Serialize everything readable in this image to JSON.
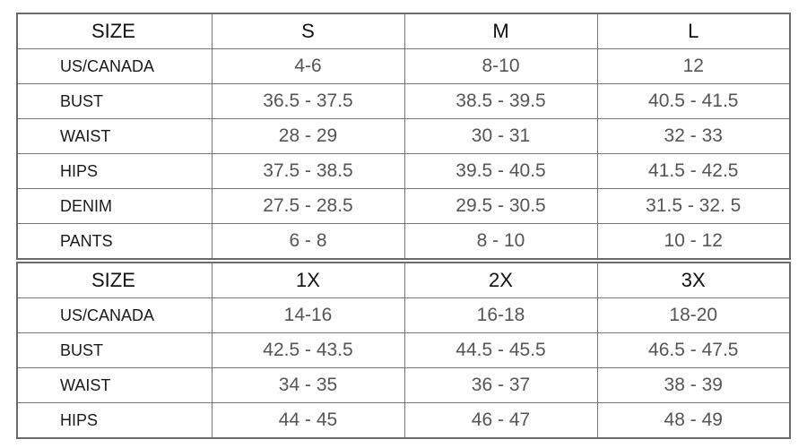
{
  "tables": [
    {
      "header": [
        "SIZE",
        "S",
        "M",
        "L"
      ],
      "rows": [
        {
          "label": "US/CANADA",
          "values": [
            "4-6",
            "8-10",
            "12"
          ]
        },
        {
          "label": "BUST",
          "values": [
            "36.5 - 37.5",
            "38.5 - 39.5",
            "40.5 - 41.5"
          ]
        },
        {
          "label": "WAIST",
          "values": [
            "28 - 29",
            "30 - 31",
            "32 - 33"
          ]
        },
        {
          "label": "HIPS",
          "values": [
            "37.5 - 38.5",
            "39.5 - 40.5",
            "41.5 - 42.5"
          ]
        },
        {
          "label": "DENIM",
          "values": [
            "27.5 - 28.5",
            "29.5 - 30.5",
            "31.5 - 32. 5"
          ]
        },
        {
          "label": "PANTS",
          "values": [
            "6 - 8",
            "8 - 10",
            "10 - 12"
          ]
        }
      ]
    },
    {
      "header": [
        "SIZE",
        "1X",
        "2X",
        "3X"
      ],
      "rows": [
        {
          "label": "US/CANADA",
          "values": [
            "14-16",
            "16-18",
            "18-20"
          ]
        },
        {
          "label": "BUST",
          "values": [
            "42.5 - 43.5",
            "44.5 - 45.5",
            "46.5 - 47.5"
          ]
        },
        {
          "label": "WAIST",
          "values": [
            "34 - 35",
            "36 - 37",
            "38 - 39"
          ]
        },
        {
          "label": "HIPS",
          "values": [
            "44 - 45",
            "46 - 47",
            "48 - 49"
          ]
        }
      ]
    }
  ]
}
